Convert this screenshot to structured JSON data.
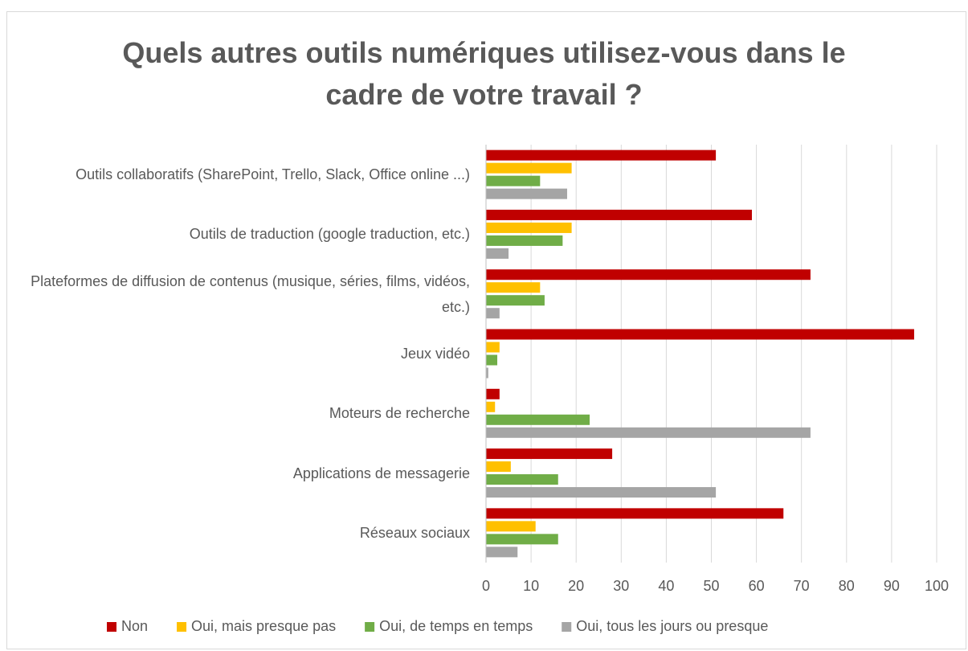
{
  "chart_data": {
    "type": "hbar",
    "title": "Quels autres outils numériques utilisez-vous dans le cadre de votre travail ?",
    "categories": [
      "Outils collaboratifs (SharePoint, Trello, Slack, Office online ...)",
      "Outils de traduction (google traduction, etc.)",
      "Plateformes de diffusion de contenus (musique, séries, films, vidéos, etc.)",
      "Jeux vidéo",
      "Moteurs de recherche",
      "Applications de messagerie",
      "Réseaux sociaux"
    ],
    "series": [
      {
        "name": "Non",
        "color": "#c00000",
        "values": [
          51,
          59,
          72,
          95,
          3,
          28,
          66
        ]
      },
      {
        "name": "Oui, mais presque pas",
        "color": "#ffc000",
        "values": [
          19,
          19,
          12,
          3,
          2,
          5.5,
          11
        ]
      },
      {
        "name": "Oui, de temps en temps",
        "color": "#70ad47",
        "values": [
          12,
          17,
          13,
          2.5,
          23,
          16,
          16
        ]
      },
      {
        "name": "Oui, tous les jours ou presque",
        "color": "#a5a5a5",
        "values": [
          18,
          5,
          3,
          0.5,
          72,
          51,
          7
        ]
      }
    ],
    "xlim": [
      0,
      100
    ],
    "xticks": [
      0,
      10,
      20,
      30,
      40,
      50,
      60,
      70,
      80,
      90,
      100
    ],
    "grid": true,
    "legend": "bottom"
  }
}
